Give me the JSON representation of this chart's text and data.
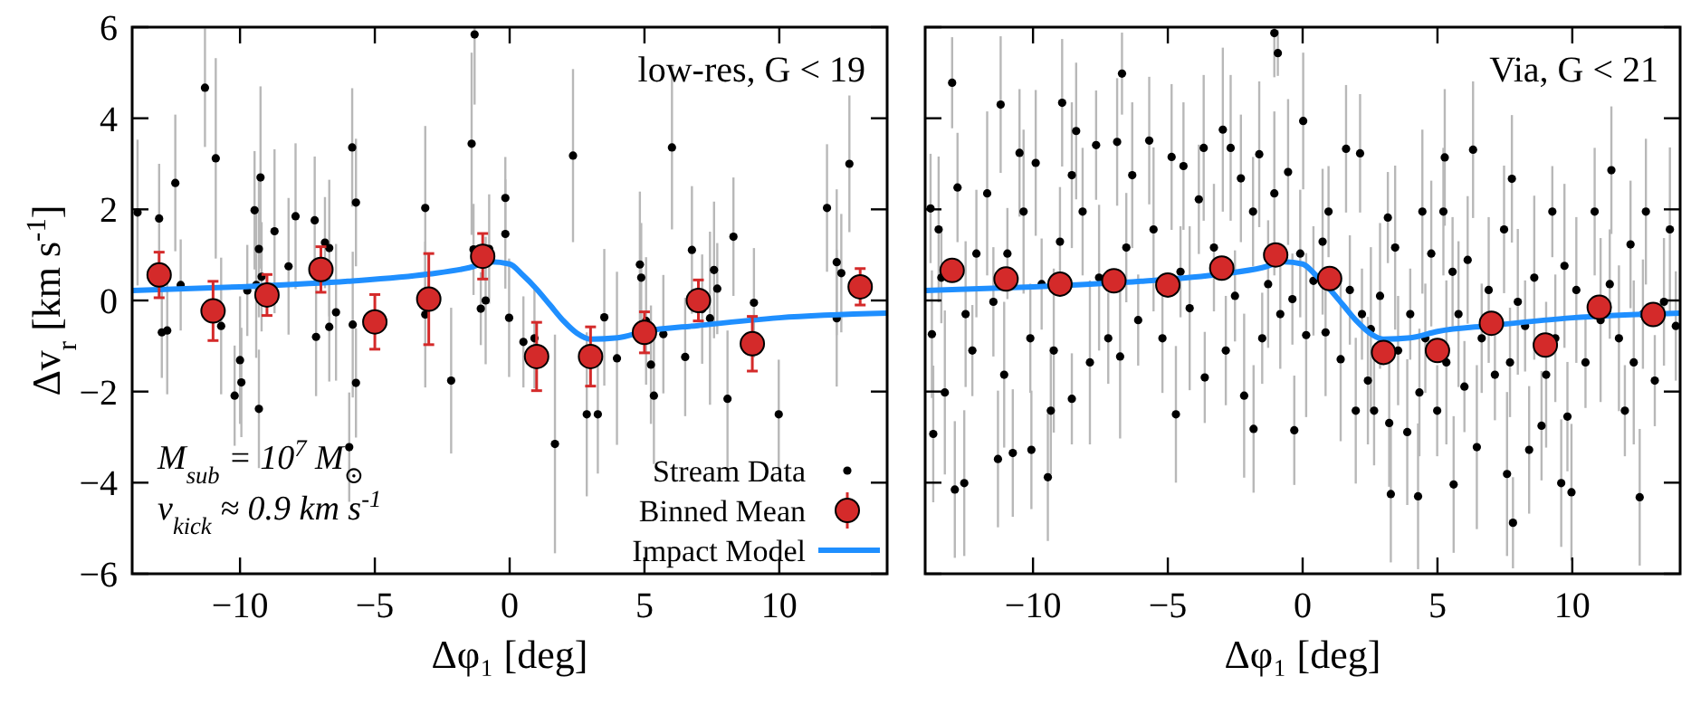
{
  "chart_data": [
    {
      "type": "scatter",
      "xlim": [
        -14,
        14
      ],
      "ylim": [
        -6,
        6
      ],
      "xticks": [
        -10,
        -5,
        0,
        5,
        10
      ],
      "yticks": [
        -6,
        -4,
        -2,
        0,
        2,
        4,
        6
      ],
      "xlabel": "Δφ₁ [deg]",
      "ylabel": "Δv$_{r}$ [km s$^{-1}$]",
      "annotations": [
        "low-res, G < 19",
        "M$_{sub}$ = 10$^{7}$ M$_{⊙}$",
        "v$_{kick}$ ≈ 0.9 km s$^{-1}$"
      ],
      "legend": "bottom right",
      "series": [
        {
          "name": "Stream Data",
          "type": "scatter",
          "marker": "circle",
          "color": "#000000",
          "x": [
            -13.8,
            -13.0,
            -12.9,
            -12.7,
            -12.4,
            -12.2,
            -11.3,
            -10.9,
            -10.7,
            -10.2,
            -10.0,
            -9.95,
            -9.73,
            -9.46,
            -9.4,
            -9.3,
            -9.3,
            -9.24,
            -9.2,
            -8.72,
            -8.2,
            -7.94,
            -7.23,
            -7.18,
            -6.85,
            -6.69,
            -6.69,
            -6.44,
            -5.95,
            -5.84,
            -5.82,
            -5.7,
            -5.7,
            -3.13,
            -3.13,
            -2.17,
            -1.41,
            -1.3,
            -1.34,
            -1.07,
            -0.89,
            -0.76,
            -0.16,
            -0.16,
            -0.02,
            0.51,
            0.92,
            1.68,
            2.35,
            2.86,
            3.27,
            3.51,
            3.98,
            4.83,
            4.88,
            5.06,
            5.24,
            5.35,
            5.7,
            6.02,
            6.51,
            6.76,
            7.14,
            7.43,
            7.58,
            7.7,
            8.08,
            8.3,
            9.06,
            9.98,
            11.77,
            12.13,
            12.3,
            12.13,
            12.6
          ],
          "values": [
            1.93,
            1.8,
            -0.7,
            -0.66,
            2.58,
            0.34,
            4.67,
            3.12,
            -0.56,
            -2.09,
            -1.31,
            -1.8,
            0.22,
            1.98,
            0.34,
            1.13,
            -2.38,
            2.7,
            0.52,
            1.52,
            0.75,
            1.85,
            1.76,
            -0.8,
            1.27,
            1.15,
            -0.58,
            -0.26,
            -3.22,
            3.36,
            -0.53,
            2.15,
            -1.81,
            2.03,
            -0.31,
            -1.76,
            3.44,
            5.84,
            1.12,
            -0.18,
            0.0,
            1.13,
            2.25,
            1.46,
            -0.38,
            -0.91,
            -0.83,
            -3.15,
            3.18,
            -2.5,
            -2.5,
            -0.37,
            -1.27,
            0.79,
            0.5,
            -0.45,
            -1.41,
            -2.09,
            -0.74,
            3.36,
            -1.24,
            1.11,
            -0.19,
            -0.39,
            0.67,
            0.26,
            -2.16,
            1.4,
            -0.05,
            -2.5,
            2.03,
            0.84,
            0.6,
            -0.39,
            3.0
          ],
          "errors": [
            1.6,
            1.2,
            1.0,
            1.4,
            1.5,
            1.0,
            1.3,
            2.2,
            1.5,
            1.1,
            1.4,
            1.2,
            1.0,
            1.3,
            1.6,
            1.5,
            1.3,
            2.0,
            1.2,
            1.8,
            1.5,
            1.6,
            1.4,
            1.3,
            1.0,
            1.5,
            1.2,
            1.5,
            1.2,
            1.3,
            1.6,
            1.4,
            1.2,
            1.8,
            1.6,
            1.6,
            2.0,
            [
              4.3,
              6.0
            ],
            1.0,
            0.8,
            1.4,
            1.2,
            0.9,
            1.2,
            1.3,
            1.0,
            1.1,
            2.4,
            1.9,
            1.8,
            1.3,
            1.5,
            1.9,
            1.6,
            1.2,
            1.4,
            1.3,
            1.5,
            1.3,
            1.8,
            1.3,
            1.4,
            1.2,
            1.9,
            1.5,
            1.0,
            1.5,
            1.3,
            1.2,
            1.2,
            1.4,
            1.6,
            1.3,
            1.5,
            1.5
          ]
        },
        {
          "name": "Binned Mean",
          "type": "scatter",
          "marker": "circle",
          "color": "#d42a2a",
          "x": [
            -13,
            -11,
            -9,
            -7,
            -5,
            -3,
            -1,
            1,
            3,
            5,
            7,
            9,
            13
          ],
          "values": [
            0.56,
            -0.23,
            0.12,
            0.68,
            -0.47,
            0.03,
            0.97,
            -1.23,
            -1.23,
            -0.7,
            0.0,
            -0.95,
            0.3
          ],
          "errors": [
            0.5,
            0.65,
            0.45,
            0.5,
            0.6,
            1.0,
            0.5,
            0.75,
            0.65,
            0.45,
            0.45,
            0.6,
            0.4
          ]
        },
        {
          "name": "Impact Model",
          "type": "line",
          "color": "#1f8fff",
          "x": [
            -14,
            -10,
            -6,
            -3,
            -1.5,
            -0.7,
            0,
            0.5,
            1,
            1.5,
            2,
            2.5,
            3,
            4,
            5,
            7,
            10,
            14
          ],
          "values": [
            0.22,
            0.3,
            0.42,
            0.58,
            0.72,
            0.85,
            0.8,
            0.55,
            0.25,
            -0.1,
            -0.45,
            -0.72,
            -0.85,
            -0.82,
            -0.68,
            -0.55,
            -0.38,
            -0.28
          ]
        }
      ]
    },
    {
      "type": "scatter",
      "xlim": [
        -14,
        14
      ],
      "ylim": [
        -6,
        6
      ],
      "xticks": [
        -10,
        -5,
        0,
        5,
        10
      ],
      "yticks": [
        -6,
        -4,
        -2,
        0,
        2,
        4,
        6
      ],
      "tick_labels": "x",
      "xlabel": "Δφ₁ [deg]",
      "annotations": [
        "Via, G < 21"
      ],
      "series": [
        {
          "type": "scatter",
          "marker": "circle",
          "color": "#000000",
          "x": [
            -13.0,
            -12.9,
            -12.55,
            -13.7,
            -11.2,
            -11.3,
            -10.75,
            -8.92,
            -9.45,
            -10.06,
            -6.7,
            -8.4,
            -1.05,
            -0.92,
            0.02,
            -0.31,
            -1.82,
            -4.7,
            3.27,
            4.28,
            7.8,
            5.6,
            9.59,
            9.97,
            12.5,
            11.45,
            6.32,
            5.27,
            1.61,
            2.13,
            7.76,
            -13.8,
            -13.5,
            -13.4,
            -13.75,
            -13.27,
            -12.8,
            -12.5,
            -12.25,
            -12.1,
            -11.7,
            -11.47,
            -11.07,
            -10.95,
            -10.5,
            -10.35,
            -10.1,
            -9.9,
            -9.68,
            -9.34,
            -9.23,
            -9.0,
            -8.56,
            -8.56,
            -8.16,
            -7.89,
            -7.66,
            -7.55,
            -7.21,
            -6.88,
            -6.77,
            -6.54,
            -6.32,
            -6.1,
            -5.69,
            -5.53,
            -5.2,
            -4.86,
            -4.53,
            -4.42,
            -4.19,
            -3.85,
            -3.67,
            -3.63,
            -3.29,
            -2.96,
            -2.85,
            -2.67,
            -2.51,
            -2.29,
            -2.17,
            -1.84,
            -1.61,
            -1.5,
            -1.28,
            -1.05,
            -0.83,
            -0.54,
            -0.38,
            -0.09,
            0.13,
            0.4,
            0.74,
            0.96,
            0.85,
            1.41,
            1.75,
            1.97,
            2.2,
            2.42,
            2.53,
            2.65,
            2.87,
            3.16,
            3.21,
            3.43,
            3.54,
            3.88,
            3.99,
            4.33,
            4.44,
            4.55,
            4.77,
            4.99,
            5.22,
            5.33,
            5.56,
            5.78,
            6.0,
            6.12,
            6.46,
            6.64,
            6.9,
            7.13,
            7.47,
            7.58,
            7.69,
            7.98,
            8.25,
            8.4,
            8.59,
            8.86,
            9.03,
            9.26,
            9.37,
            9.71,
            9.82,
            10.15,
            10.49,
            10.83,
            11.05,
            11.39,
            11.73,
            11.95,
            12.16,
            12.28,
            12.62,
            12.73,
            13.06,
            13.4,
            13.62,
            13.84
          ],
          "values": [
            4.78,
            -4.15,
            -4.01,
            -2.93,
            4.3,
            -3.48,
            -3.35,
            4.34,
            -3.88,
            -3.28,
            4.98,
            3.72,
            5.87,
            5.43,
            3.94,
            -2.85,
            -2.82,
            -2.5,
            -4.25,
            -4.3,
            -4.88,
            -4.04,
            -4.01,
            -4.21,
            -4.32,
            2.86,
            3.31,
            3.14,
            3.33,
            3.23,
            2.67,
            2.02,
            1.56,
            0.5,
            -0.74,
            -2.02,
            2.48,
            -0.3,
            -1.1,
            1.03,
            2.35,
            -0.03,
            -1.63,
            1.03,
            3.24,
            1.95,
            -0.83,
            3.02,
            0.36,
            -2.42,
            -1.1,
            1.29,
            2.75,
            -2.16,
            1.95,
            -1.36,
            3.41,
            0.5,
            -0.83,
            3.48,
            -1.23,
            1.16,
            2.75,
            -0.43,
            3.51,
            1.56,
            -0.83,
            3.15,
            0.63,
            2.95,
            -0.17,
            2.22,
            3.35,
            -1.69,
            1.16,
            3.75,
            -1.1,
            3.35,
            0.1,
            2.68,
            -2.09,
            1.95,
            3.21,
            -0.83,
            0.36,
            2.35,
            -0.3,
            2.82,
            0.03,
            1.03,
            -0.76,
            0.43,
            1.29,
            1.95,
            -0.7,
            -1.29,
            0.23,
            -2.42,
            -0.3,
            -1.76,
            -0.63,
            -2.42,
            0.1,
            1.82,
            -2.69,
            1.16,
            -1.1,
            -2.89,
            -0.3,
            -2.02,
            1.95,
            -0.83,
            1.03,
            -2.42,
            1.95,
            -1.36,
            0.63,
            -0.3,
            -1.89,
            0.89,
            -3.22,
            -0.83,
            0.23,
            -1.63,
            1.56,
            -3.81,
            -1.36,
            -0.03,
            -0.56,
            -3.28,
            0.5,
            -2.75,
            -1.63,
            1.95,
            -0.83,
            0.76,
            -2.55,
            0.23,
            -1.36,
            1.95,
            -0.43,
            0.36,
            -0.83,
            -2.42,
            1.23,
            -1.36,
            -0.3,
            1.95,
            -1.76,
            -0.03,
            1.56,
            -0.56
          ],
          "errors": [
            1.0,
            1.5,
            1.6,
            1.5,
            1.5,
            1.5,
            1.4,
            1.4,
            1.4,
            1.3,
            0.9,
            1.5,
            [
              4.9,
              6.0
            ],
            0.5,
            1.5,
            1.2,
            1.4,
            1.5,
            1.5,
            1.6,
            1.0,
            1.5,
            1.4,
            1.5,
            1.5,
            1.4,
            1.5,
            1.5,
            1.4,
            1.3,
            1.4,
            1.2,
            1.6,
            1.0,
            1.4,
            1.8,
            1.2,
            1.6,
            1.0,
            1.4,
            1.8,
            1.2,
            1.6,
            1.0,
            1.4,
            1.8,
            1.2,
            1.6,
            1.0,
            1.4,
            1.8,
            1.2,
            1.6,
            1.0,
            1.4,
            1.8,
            1.2,
            1.6,
            1.0,
            1.4,
            1.8,
            1.2,
            1.6,
            1.0,
            1.4,
            1.8,
            1.2,
            1.6,
            1.0,
            1.4,
            1.8,
            1.2,
            1.6,
            1.0,
            1.4,
            1.8,
            1.2,
            1.6,
            1.0,
            1.4,
            1.8,
            1.2,
            1.6,
            1.0,
            1.4,
            1.8,
            1.2,
            1.6,
            1.0,
            1.4,
            1.8,
            1.2,
            1.6,
            1.0,
            1.4,
            1.8,
            1.2,
            1.6,
            1.0,
            1.4,
            1.8,
            1.2,
            1.6,
            1.0,
            1.4,
            1.8,
            1.2,
            1.6,
            1.0,
            1.4,
            1.8,
            1.2,
            1.6,
            1.0,
            1.4,
            1.8,
            1.2,
            1.6,
            1.0,
            1.4,
            1.8,
            1.2,
            1.6,
            1.0,
            1.4,
            1.8,
            1.2,
            1.6,
            1.0,
            1.4,
            1.8,
            1.2,
            1.6,
            1.0,
            1.4,
            1.8,
            1.2,
            1.6,
            1.0,
            1.4,
            1.8,
            1.2,
            1.6,
            1.0,
            1.4,
            1.8,
            1.2,
            1.6,
            1.0,
            1.4,
            1.8,
            1.2
          ]
        },
        {
          "type": "scatter",
          "marker": "circle",
          "color": "#d42a2a",
          "x": [
            -13,
            -11,
            -9,
            -7,
            -5,
            -3,
            -1,
            1,
            3,
            5,
            7,
            9,
            11,
            13
          ],
          "values": [
            0.66,
            0.47,
            0.36,
            0.43,
            0.34,
            0.71,
            1.0,
            0.48,
            -1.14,
            -1.1,
            -0.5,
            -0.98,
            -0.15,
            -0.31
          ]
        },
        {
          "type": "line",
          "color": "#1f8fff",
          "x": [
            -14,
            -10,
            -6,
            -3,
            -1.5,
            -0.7,
            0,
            0.5,
            1,
            1.5,
            2,
            2.5,
            3,
            4,
            5,
            7,
            10,
            14
          ],
          "values": [
            0.22,
            0.3,
            0.42,
            0.58,
            0.72,
            0.85,
            0.8,
            0.55,
            0.25,
            -0.1,
            -0.45,
            -0.72,
            -0.85,
            -0.82,
            -0.68,
            -0.55,
            -0.38,
            -0.28
          ]
        }
      ]
    }
  ]
}
